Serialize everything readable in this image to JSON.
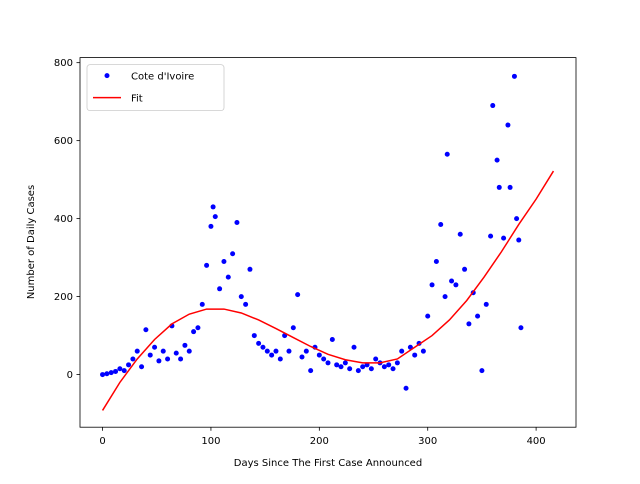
{
  "chart_data": {
    "type": "scatter",
    "xlabel": "Days Since The First Case Announced",
    "ylabel": "Number of Daily Cases",
    "xlim": [
      -20.8,
      436.8
    ],
    "ylim": [
      -135,
      813
    ],
    "xticks": [
      0,
      100,
      200,
      300,
      400
    ],
    "yticks": [
      0,
      200,
      400,
      600,
      800
    ],
    "legend": "upper left",
    "series": [
      {
        "name": "Cote d'Ivoire",
        "color": "#0000ff",
        "type": "scatter",
        "x": [
          0,
          4,
          8,
          12,
          16,
          20,
          24,
          28,
          32,
          36,
          40,
          44,
          48,
          52,
          56,
          60,
          64,
          68,
          72,
          76,
          80,
          84,
          88,
          92,
          96,
          100,
          102,
          104,
          108,
          112,
          116,
          120,
          124,
          128,
          132,
          136,
          140,
          144,
          148,
          152,
          156,
          160,
          164,
          168,
          172,
          176,
          180,
          184,
          188,
          192,
          196,
          200,
          204,
          208,
          212,
          216,
          220,
          224,
          228,
          232,
          236,
          240,
          244,
          248,
          252,
          256,
          260,
          264,
          268,
          272,
          276,
          280,
          284,
          288,
          292,
          296,
          300,
          304,
          308,
          312,
          316,
          318,
          322,
          326,
          330,
          334,
          338,
          342,
          346,
          350,
          354,
          358,
          360,
          364,
          366,
          370,
          374,
          376,
          380,
          382,
          384,
          386
        ],
        "values": [
          0,
          2,
          5,
          8,
          15,
          10,
          25,
          40,
          60,
          20,
          115,
          50,
          70,
          35,
          60,
          40,
          125,
          55,
          40,
          75,
          60,
          110,
          120,
          180,
          280,
          380,
          430,
          405,
          220,
          290,
          250,
          310,
          390,
          200,
          180,
          270,
          100,
          80,
          70,
          60,
          50,
          60,
          40,
          100,
          60,
          120,
          205,
          45,
          60,
          10,
          70,
          50,
          40,
          30,
          90,
          25,
          20,
          30,
          15,
          70,
          10,
          20,
          25,
          15,
          40,
          30,
          20,
          25,
          15,
          30,
          60,
          -35,
          70,
          50,
          80,
          60,
          150,
          230,
          290,
          385,
          200,
          565,
          240,
          230,
          360,
          270,
          130,
          210,
          150,
          10,
          180,
          355,
          690,
          550,
          480,
          350,
          640,
          480,
          765,
          400,
          345,
          120
        ]
      },
      {
        "name": "Fit",
        "color": "#ff0000",
        "type": "line",
        "x": [
          0,
          16,
          32,
          48,
          64,
          80,
          96,
          112,
          128,
          144,
          160,
          176,
          192,
          208,
          224,
          240,
          256,
          272,
          288,
          304,
          320,
          336,
          352,
          368,
          384,
          400,
          416
        ],
        "values": [
          -92,
          -20,
          40,
          90,
          130,
          155,
          168,
          168,
          158,
          140,
          118,
          95,
          72,
          52,
          38,
          30,
          30,
          40,
          70,
          100,
          140,
          190,
          250,
          315,
          385,
          450,
          522
        ]
      }
    ]
  }
}
